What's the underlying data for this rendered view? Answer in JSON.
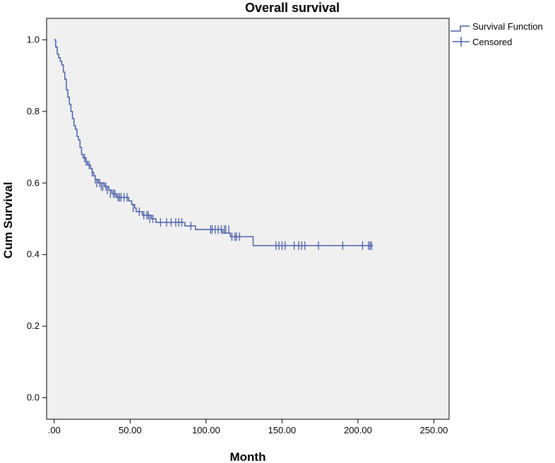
{
  "chart_data": {
    "type": "line",
    "title": "Overall survival",
    "xlabel": "Month",
    "ylabel": "Cum Survival",
    "xlim": [
      -5,
      260
    ],
    "ylim": [
      -0.06,
      1.06
    ],
    "x_ticks": [
      0,
      50,
      100,
      150,
      200,
      250
    ],
    "x_tick_labels": [
      ".00",
      "50.00",
      "100.00",
      "150.00",
      "200.00",
      "250.00"
    ],
    "y_ticks": [
      0,
      0.2,
      0.4,
      0.6,
      0.8,
      1.0
    ],
    "y_tick_labels": [
      "0.0",
      "0.2",
      "0.4",
      "0.6",
      "0.8",
      "1.0"
    ],
    "grid": false,
    "plot_background": "#f0f0f0",
    "series_color": "#4a5fa8",
    "legend_placement": "top-right, outside plot",
    "legend": [
      "Survival Function",
      "Censored"
    ],
    "series": [
      {
        "name": "Survival Function",
        "step": true,
        "points": [
          [
            0,
            1.0
          ],
          [
            1,
            0.98
          ],
          [
            2,
            0.96
          ],
          [
            3,
            0.95
          ],
          [
            4,
            0.94
          ],
          [
            5,
            0.93
          ],
          [
            6,
            0.91
          ],
          [
            7,
            0.89
          ],
          [
            8,
            0.86
          ],
          [
            9,
            0.84
          ],
          [
            10,
            0.82
          ],
          [
            11,
            0.8
          ],
          [
            12,
            0.78
          ],
          [
            13,
            0.76
          ],
          [
            14,
            0.75
          ],
          [
            15,
            0.73
          ],
          [
            16,
            0.72
          ],
          [
            17,
            0.7
          ],
          [
            18,
            0.68
          ],
          [
            19,
            0.67
          ],
          [
            21,
            0.66
          ],
          [
            22,
            0.65
          ],
          [
            24,
            0.64
          ],
          [
            25,
            0.63
          ],
          [
            26,
            0.62
          ],
          [
            27,
            0.61
          ],
          [
            29,
            0.6
          ],
          [
            33,
            0.59
          ],
          [
            36,
            0.58
          ],
          [
            38,
            0.57
          ],
          [
            41,
            0.56
          ],
          [
            49,
            0.55
          ],
          [
            51,
            0.54
          ],
          [
            53,
            0.53
          ],
          [
            54,
            0.52
          ],
          [
            58,
            0.51
          ],
          [
            64,
            0.5
          ],
          [
            67,
            0.49
          ],
          [
            86,
            0.48
          ],
          [
            93,
            0.47
          ],
          [
            111,
            0.46
          ],
          [
            116,
            0.45
          ],
          [
            131,
            0.425
          ],
          [
            210,
            0.425
          ]
        ]
      },
      {
        "name": "Censored",
        "marks": [
          [
            20,
            0.67
          ],
          [
            21,
            0.66
          ],
          [
            23,
            0.65
          ],
          [
            25,
            0.63
          ],
          [
            27,
            0.61
          ],
          [
            28,
            0.6
          ],
          [
            30,
            0.6
          ],
          [
            31,
            0.59
          ],
          [
            32,
            0.59
          ],
          [
            34,
            0.59
          ],
          [
            35,
            0.58
          ],
          [
            37,
            0.57
          ],
          [
            39,
            0.57
          ],
          [
            40,
            0.57
          ],
          [
            42,
            0.56
          ],
          [
            43,
            0.56
          ],
          [
            44,
            0.56
          ],
          [
            46,
            0.56
          ],
          [
            48,
            0.56
          ],
          [
            52,
            0.53
          ],
          [
            56,
            0.52
          ],
          [
            59,
            0.51
          ],
          [
            61,
            0.51
          ],
          [
            62,
            0.51
          ],
          [
            63,
            0.5
          ],
          [
            65,
            0.5
          ],
          [
            70,
            0.49
          ],
          [
            74,
            0.49
          ],
          [
            77,
            0.49
          ],
          [
            80,
            0.49
          ],
          [
            82,
            0.49
          ],
          [
            84,
            0.49
          ],
          [
            90,
            0.48
          ],
          [
            103,
            0.47
          ],
          [
            104,
            0.47
          ],
          [
            106,
            0.47
          ],
          [
            108,
            0.47
          ],
          [
            110,
            0.47
          ],
          [
            112,
            0.47
          ],
          [
            113,
            0.47
          ],
          [
            115,
            0.47
          ],
          [
            117,
            0.45
          ],
          [
            119,
            0.45
          ],
          [
            120,
            0.45
          ],
          [
            122,
            0.45
          ],
          [
            146,
            0.425
          ],
          [
            148,
            0.425
          ],
          [
            150,
            0.425
          ],
          [
            152,
            0.425
          ],
          [
            158,
            0.425
          ],
          [
            161,
            0.425
          ],
          [
            163,
            0.425
          ],
          [
            165,
            0.425
          ],
          [
            174,
            0.425
          ],
          [
            190,
            0.425
          ],
          [
            203,
            0.425
          ],
          [
            207,
            0.425
          ],
          [
            208,
            0.425
          ],
          [
            209,
            0.425
          ]
        ]
      }
    ]
  }
}
